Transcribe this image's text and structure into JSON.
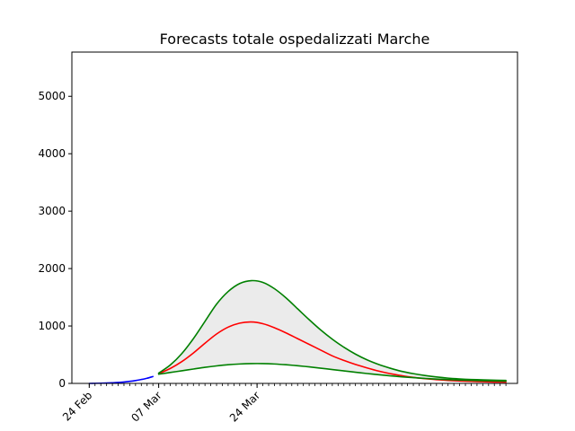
{
  "chart_data": {
    "type": "line",
    "title": "Forecasts totale ospedalizzati Marche",
    "xlabel": "",
    "ylabel": "",
    "x_axis_type": "date",
    "x_tick_labels": [
      "24 Feb",
      "07 Mar",
      "24 Mar"
    ],
    "x_tick_dates": [
      "2020-02-24",
      "2020-03-07",
      "2020-03-24"
    ],
    "xlim": [
      "2020-02-21",
      "2020-05-08"
    ],
    "ylim": [
      0,
      5770
    ],
    "y_ticks": [
      0,
      1000,
      2000,
      3000,
      4000,
      5000
    ],
    "grid": false,
    "legend": "none",
    "band_color": "#ebebeb",
    "series": [
      {
        "color": "#0000ff",
        "points": [
          [
            "2020-02-24",
            0
          ],
          [
            "2020-02-25",
            2
          ],
          [
            "2020-02-26",
            4
          ],
          [
            "2020-02-27",
            7
          ],
          [
            "2020-02-28",
            11
          ],
          [
            "2020-02-29",
            17
          ],
          [
            "2020-03-01",
            25
          ],
          [
            "2020-03-02",
            36
          ],
          [
            "2020-03-03",
            50
          ],
          [
            "2020-03-04",
            68
          ],
          [
            "2020-03-05",
            90
          ],
          [
            "2020-03-06",
            120
          ]
        ]
      },
      {
        "color": "#ff0000",
        "points": [
          [
            "2020-03-07",
            170
          ],
          [
            "2020-03-09",
            260
          ],
          [
            "2020-03-11",
            380
          ],
          [
            "2020-03-13",
            530
          ],
          [
            "2020-03-15",
            700
          ],
          [
            "2020-03-17",
            860
          ],
          [
            "2020-03-19",
            980
          ],
          [
            "2020-03-21",
            1050
          ],
          [
            "2020-03-23",
            1070
          ],
          [
            "2020-03-25",
            1040
          ],
          [
            "2020-03-27",
            970
          ],
          [
            "2020-03-29",
            880
          ],
          [
            "2020-03-31",
            780
          ],
          [
            "2020-04-02",
            680
          ],
          [
            "2020-04-04",
            580
          ],
          [
            "2020-04-06",
            480
          ],
          [
            "2020-04-08",
            400
          ],
          [
            "2020-04-10",
            330
          ],
          [
            "2020-04-12",
            270
          ],
          [
            "2020-04-14",
            215
          ],
          [
            "2020-04-16",
            170
          ],
          [
            "2020-04-18",
            135
          ],
          [
            "2020-04-20",
            105
          ],
          [
            "2020-04-22",
            82
          ],
          [
            "2020-04-24",
            65
          ],
          [
            "2020-04-26",
            52
          ],
          [
            "2020-04-28",
            42
          ],
          [
            "2020-04-30",
            35
          ],
          [
            "2020-05-02",
            30
          ],
          [
            "2020-05-04",
            25
          ],
          [
            "2020-05-06",
            22
          ]
        ]
      },
      {
        "color": "#008000",
        "points": [
          [
            "2020-03-07",
            180
          ],
          [
            "2020-03-09",
            320
          ],
          [
            "2020-03-11",
            520
          ],
          [
            "2020-03-13",
            780
          ],
          [
            "2020-03-15",
            1080
          ],
          [
            "2020-03-17",
            1380
          ],
          [
            "2020-03-19",
            1600
          ],
          [
            "2020-03-21",
            1740
          ],
          [
            "2020-03-23",
            1790
          ],
          [
            "2020-03-25",
            1760
          ],
          [
            "2020-03-27",
            1650
          ],
          [
            "2020-03-29",
            1490
          ],
          [
            "2020-03-31",
            1300
          ],
          [
            "2020-04-02",
            1110
          ],
          [
            "2020-04-04",
            930
          ],
          [
            "2020-04-06",
            770
          ],
          [
            "2020-04-08",
            630
          ],
          [
            "2020-04-10",
            510
          ],
          [
            "2020-04-12",
            410
          ],
          [
            "2020-04-14",
            330
          ],
          [
            "2020-04-16",
            265
          ],
          [
            "2020-04-18",
            210
          ],
          [
            "2020-04-20",
            170
          ],
          [
            "2020-04-22",
            138
          ],
          [
            "2020-04-24",
            112
          ],
          [
            "2020-04-26",
            92
          ],
          [
            "2020-04-28",
            78
          ],
          [
            "2020-04-30",
            68
          ],
          [
            "2020-05-02",
            62
          ],
          [
            "2020-05-04",
            56
          ],
          [
            "2020-05-06",
            52
          ]
        ]
      },
      {
        "color": "#008000",
        "points": [
          [
            "2020-03-07",
            160
          ],
          [
            "2020-03-09",
            190
          ],
          [
            "2020-03-11",
            220
          ],
          [
            "2020-03-13",
            250
          ],
          [
            "2020-03-15",
            280
          ],
          [
            "2020-03-17",
            305
          ],
          [
            "2020-03-19",
            325
          ],
          [
            "2020-03-21",
            338
          ],
          [
            "2020-03-23",
            345
          ],
          [
            "2020-03-25",
            345
          ],
          [
            "2020-03-27",
            338
          ],
          [
            "2020-03-29",
            325
          ],
          [
            "2020-03-31",
            308
          ],
          [
            "2020-04-02",
            288
          ],
          [
            "2020-04-04",
            265
          ],
          [
            "2020-04-06",
            242
          ],
          [
            "2020-04-08",
            218
          ],
          [
            "2020-04-10",
            195
          ],
          [
            "2020-04-12",
            172
          ],
          [
            "2020-04-14",
            152
          ],
          [
            "2020-04-16",
            132
          ],
          [
            "2020-04-18",
            115
          ],
          [
            "2020-04-20",
            100
          ],
          [
            "2020-04-22",
            87
          ],
          [
            "2020-04-24",
            76
          ],
          [
            "2020-04-26",
            67
          ],
          [
            "2020-04-28",
            59
          ],
          [
            "2020-04-30",
            53
          ],
          [
            "2020-05-02",
            48
          ],
          [
            "2020-05-04",
            44
          ],
          [
            "2020-05-06",
            40
          ]
        ]
      }
    ]
  }
}
